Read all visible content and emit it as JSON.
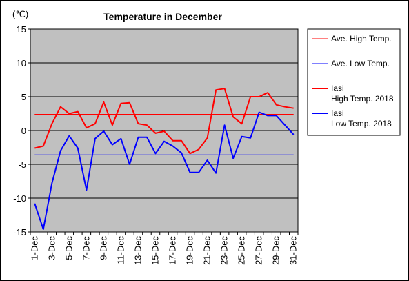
{
  "chart_data": {
    "type": "line",
    "title": "Temperature in December",
    "unit_label": "(℃)",
    "ylim": [
      -15,
      15
    ],
    "yticks": [
      15,
      10,
      5,
      0,
      -5,
      -10,
      -15
    ],
    "categories": [
      "1-Dec",
      "2-Dec",
      "3-Dec",
      "4-Dec",
      "5-Dec",
      "6-Dec",
      "7-Dec",
      "8-Dec",
      "9-Dec",
      "10-Dec",
      "11-Dec",
      "12-Dec",
      "13-Dec",
      "14-Dec",
      "15-Dec",
      "16-Dec",
      "17-Dec",
      "18-Dec",
      "19-Dec",
      "20-Dec",
      "21-Dec",
      "22-Dec",
      "23-Dec",
      "24-Dec",
      "25-Dec",
      "26-Dec",
      "27-Dec",
      "28-Dec",
      "29-Dec",
      "30-Dec",
      "31-Dec"
    ],
    "xtick_labels": [
      "1-Dec",
      "3-Dec",
      "5-Dec",
      "7-Dec",
      "9-Dec",
      "11-Dec",
      "13-Dec",
      "15-Dec",
      "17-Dec",
      "19-Dec",
      "21-Dec",
      "23-Dec",
      "25-Dec",
      "27-Dec",
      "29-Dec",
      "31-Dec"
    ],
    "grid": true,
    "legend_position": "right",
    "background_color": "#c0c0c0",
    "series": [
      {
        "name": "Ave. High Temp.",
        "color": "#ff0000",
        "style": "thin",
        "values": [
          2.4,
          2.4,
          2.4,
          2.4,
          2.4,
          2.4,
          2.4,
          2.4,
          2.4,
          2.4,
          2.4,
          2.4,
          2.4,
          2.4,
          2.4,
          2.4,
          2.4,
          2.4,
          2.4,
          2.4,
          2.4,
          2.4,
          2.4,
          2.4,
          2.4,
          2.4,
          2.4,
          2.4,
          2.4,
          2.4,
          2.4
        ]
      },
      {
        "name": "Ave. Low Temp.",
        "color": "#0000ff",
        "style": "thin",
        "values": [
          -3.6,
          -3.6,
          -3.6,
          -3.6,
          -3.6,
          -3.6,
          -3.6,
          -3.6,
          -3.6,
          -3.6,
          -3.6,
          -3.6,
          -3.6,
          -3.6,
          -3.6,
          -3.6,
          -3.6,
          -3.6,
          -3.6,
          -3.6,
          -3.6,
          -3.6,
          -3.6,
          -3.6,
          -3.6,
          -3.6,
          -3.6,
          -3.6,
          -3.6,
          -3.6,
          -3.6
        ]
      },
      {
        "name": "Iasi\nHigh Temp. 2018",
        "color": "#ff0000",
        "style": "thick",
        "values": [
          -2.6,
          -2.3,
          1.0,
          3.5,
          2.5,
          2.8,
          0.4,
          1.0,
          4.2,
          0.8,
          4.0,
          4.1,
          1.0,
          0.8,
          -0.4,
          -0.1,
          -1.5,
          -1.5,
          -3.4,
          -2.8,
          -1.1,
          6.0,
          6.2,
          2.0,
          1.0,
          5.0,
          5.0,
          5.6,
          3.8,
          3.5,
          3.3
        ]
      },
      {
        "name": "Iasi\nLow Temp. 2018",
        "color": "#0000ff",
        "style": "thick",
        "values": [
          -10.8,
          -14.6,
          -7.8,
          -3.0,
          -0.8,
          -2.6,
          -8.8,
          -1.2,
          -0.1,
          -2.1,
          -1.2,
          -5.0,
          -1.0,
          -1.0,
          -3.4,
          -1.6,
          -2.3,
          -3.3,
          -6.2,
          -6.2,
          -4.4,
          -6.3,
          0.8,
          -4.1,
          -0.9,
          -1.1,
          2.7,
          2.2,
          2.2,
          0.8,
          -0.6
        ]
      }
    ]
  }
}
